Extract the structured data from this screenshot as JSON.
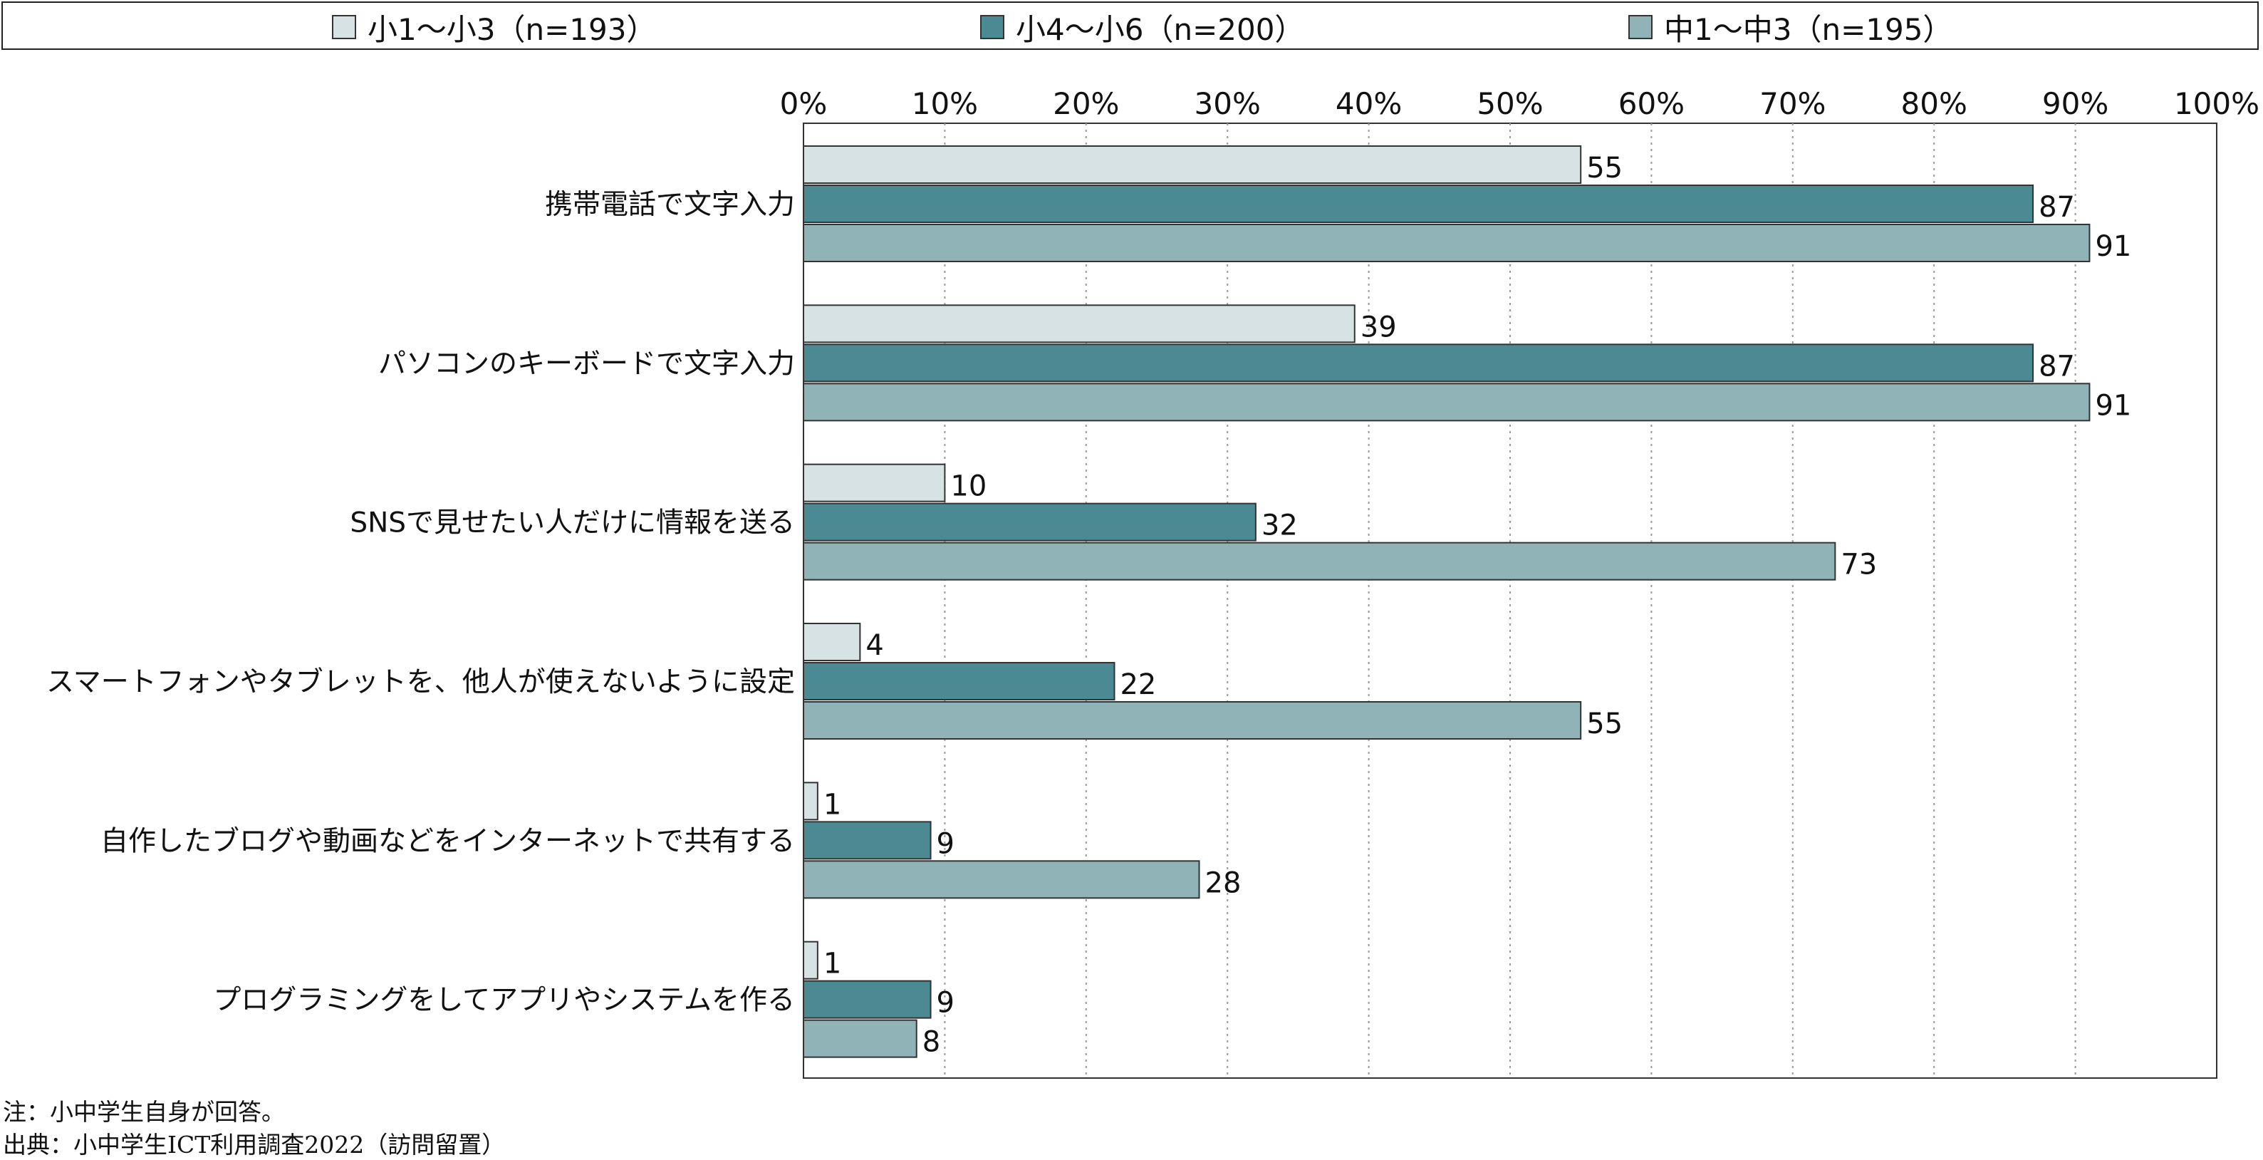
{
  "legend": [
    {
      "label": "小1～小3（n=193）",
      "color": "#d6e2e3"
    },
    {
      "label": "小4～小6（n=200）",
      "color": "#4b8a92"
    },
    {
      "label": "中1～中3（n=195）",
      "color": "#8fb3b7"
    }
  ],
  "chart_data": {
    "type": "bar",
    "orientation": "horizontal",
    "categories": [
      "携帯電話で文字入力",
      "パソコンのキーボードで文字入力",
      "SNSで見せたい人だけに情報を送る",
      "スマートフォンやタブレットを、他人が使えないように設定",
      "自作したブログや動画などをインターネットで共有する",
      "プログラミングをしてアプリやシステムを作る"
    ],
    "series": [
      {
        "name": "小1～小3（n=193）",
        "values": [
          55,
          39,
          10,
          4,
          1,
          1
        ],
        "color": "#d6e2e3"
      },
      {
        "name": "小4～小6（n=200）",
        "values": [
          87,
          87,
          32,
          22,
          9,
          9
        ],
        "color": "#4b8a92"
      },
      {
        "name": "中1～中3（n=195）",
        "values": [
          91,
          91,
          73,
          55,
          28,
          8
        ],
        "color": "#8fb3b7"
      }
    ],
    "xlim": [
      0,
      100
    ],
    "x_ticks": [
      "0%",
      "10%",
      "20%",
      "30%",
      "40%",
      "50%",
      "60%",
      "70%",
      "80%",
      "90%",
      "100%"
    ],
    "x_tick_values": [
      0,
      10,
      20,
      30,
      40,
      50,
      60,
      70,
      80,
      90,
      100
    ],
    "axis_position": "top",
    "grid": true,
    "legend_position": "top"
  },
  "notes": {
    "note": "注：小中学生自身が回答。",
    "source": "出典：小中学生ICT利用調査2022（訪問留置）"
  }
}
